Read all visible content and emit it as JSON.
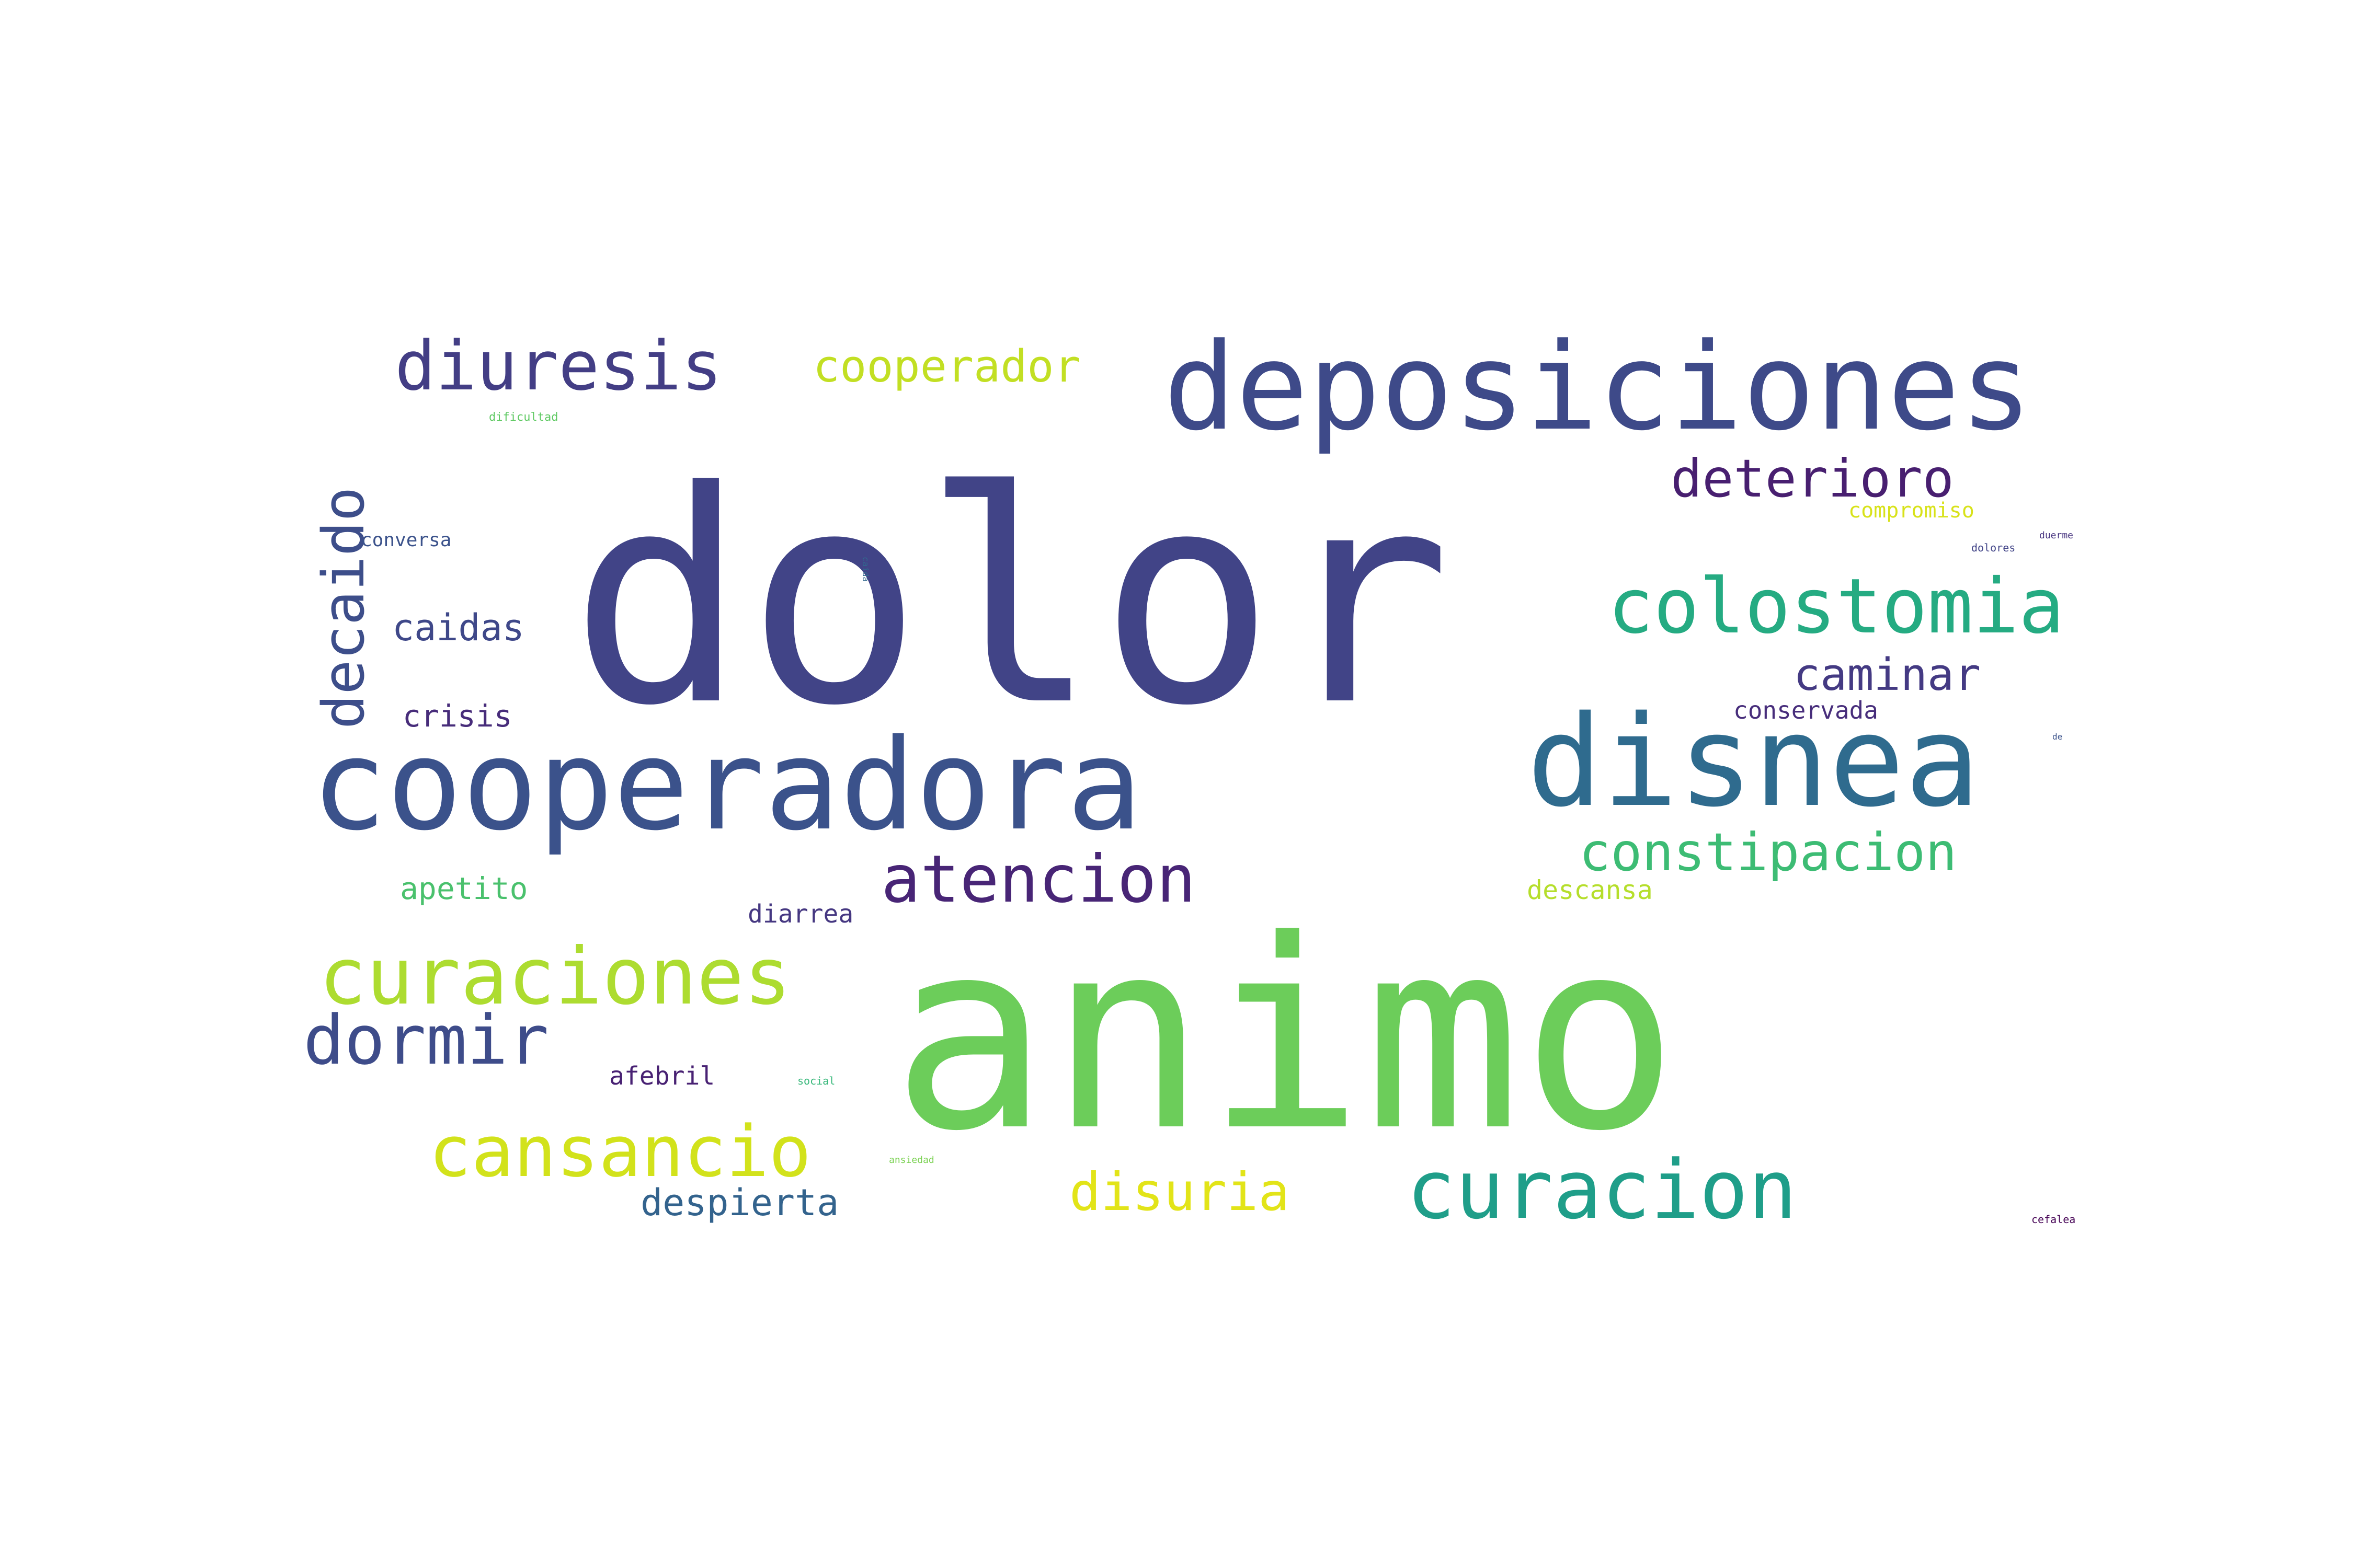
{
  "words": [
    {
      "text": "dolor",
      "color": "#414487"
    },
    {
      "text": "animo",
      "color": "#6ccd5a"
    },
    {
      "text": "deposiciones",
      "color": "#3e4a89"
    },
    {
      "text": "cooperadora",
      "color": "#3b528b"
    },
    {
      "text": "disnea",
      "color": "#2f6b8e"
    },
    {
      "text": "diuresis",
      "color": "#433e85"
    },
    {
      "text": "curaciones",
      "color": "#addc30"
    },
    {
      "text": "colostomia",
      "color": "#25ab82"
    },
    {
      "text": "curacion",
      "color": "#1f9e89"
    },
    {
      "text": "atencion",
      "color": "#482576"
    },
    {
      "text": "dormir",
      "color": "#3e4c8a"
    },
    {
      "text": "cansancio",
      "color": "#d2e21b"
    },
    {
      "text": "cooperador",
      "color": "#c2df23"
    },
    {
      "text": "deterioro",
      "color": "#481f70"
    },
    {
      "text": "constipacion",
      "color": "#3dbc74"
    },
    {
      "text": "decaido",
      "color": "#3d4e8a"
    },
    {
      "text": "caminar",
      "color": "#443a83"
    },
    {
      "text": "disuria",
      "color": "#e2e418"
    },
    {
      "text": "caidas",
      "color": "#3f4889"
    },
    {
      "text": "despierta",
      "color": "#33638d"
    },
    {
      "text": "crisis",
      "color": "#472c7a"
    },
    {
      "text": "apetito",
      "color": "#4ac16d"
    },
    {
      "text": "diarrea",
      "color": "#453781"
    },
    {
      "text": "afebril",
      "color": "#482173"
    },
    {
      "text": "descansa",
      "color": "#b5de2b"
    },
    {
      "text": "conservada",
      "color": "#472d7b"
    },
    {
      "text": "compromiso",
      "color": "#d8e219"
    },
    {
      "text": "conversa",
      "color": "#3b528b"
    },
    {
      "text": "dificultad",
      "color": "#5ec962"
    },
    {
      "text": "dolores",
      "color": "#414487"
    },
    {
      "text": "duerme",
      "color": "#46337f"
    },
    {
      "text": "caida",
      "color": "#31688e"
    },
    {
      "text": "social",
      "color": "#35b779"
    },
    {
      "text": "ansiedad",
      "color": "#7ad151"
    },
    {
      "text": "cefalea",
      "color": "#440154"
    },
    {
      "text": "de",
      "color": "#3b528b"
    }
  ]
}
